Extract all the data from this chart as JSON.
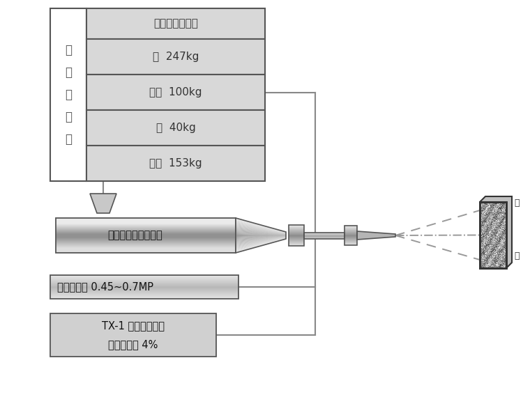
{
  "label_text": "混\n凝\n土\n拌\n合",
  "table_header": "可参考的配合比",
  "table_rows": [
    "砂  247kg",
    "水泥  100kg",
    "水  40kg",
    "石子  153kg"
  ],
  "machine_label": "湿喷式混凝土喷射机",
  "pressure_label": "风压控制在 0.45~0.7MP",
  "accelerator_label": "TX-1 型液体速凝剂\n水泥用量的 4%",
  "wall_label_top": "岩",
  "wall_label_bot": "面",
  "line_color": "#888888",
  "table_bg": "#d8d8d8",
  "box_bg": "#d0d0d0"
}
